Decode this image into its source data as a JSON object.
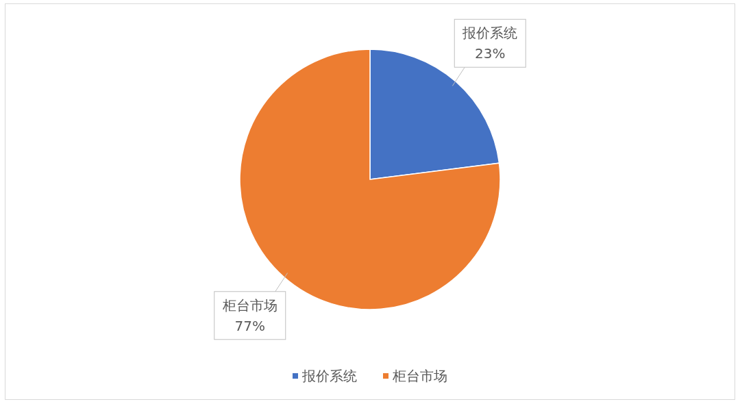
{
  "chart_data": {
    "type": "pie",
    "categories": [
      "报价系统",
      "柜台市场"
    ],
    "values": [
      23,
      77
    ],
    "colors": [
      "#4472c4",
      "#ed7d31"
    ],
    "value_labels": [
      "23%",
      "77%"
    ],
    "legend": "bottom"
  }
}
